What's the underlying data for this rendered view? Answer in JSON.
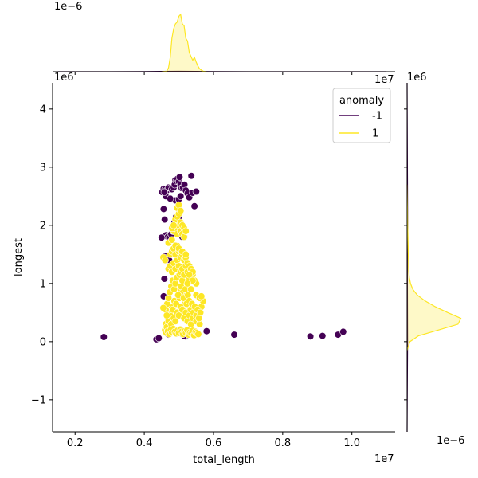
{
  "chart_data": {
    "type": "scatter",
    "title": "",
    "xlabel": "total_length",
    "ylabel": "longest",
    "x_offset_label": "1e7",
    "y_offset_label": "1e6",
    "xlim": [
      1350000,
      11250000
    ],
    "ylim": [
      -1550000,
      4450000
    ],
    "x_ticks": [
      2000000,
      4000000,
      6000000,
      8000000,
      10000000
    ],
    "x_tick_labels": [
      "0.2",
      "0.4",
      "0.6",
      "0.8",
      "1.0"
    ],
    "y_ticks": [
      -1000000,
      0,
      1000000,
      2000000,
      3000000,
      4000000
    ],
    "y_tick_labels": [
      "−1",
      "0",
      "1",
      "2",
      "3",
      "4"
    ],
    "grid": false,
    "legend": {
      "title": "anomaly",
      "placement": "upper-right",
      "entries": [
        {
          "label": "-1",
          "color": "#440154"
        },
        {
          "label": "1",
          "color": "#fde725"
        }
      ]
    },
    "series": [
      {
        "name": "-1",
        "color": "#440154",
        "x": [
          2830000,
          4350000,
          4420000,
          4520000,
          4560000,
          4600000,
          4650000,
          4700000,
          4750000,
          4800000,
          4850000,
          4880000,
          4900000,
          4930000,
          4960000,
          5000000,
          5020000,
          5050000,
          5080000,
          5120000,
          5160000,
          5200000,
          5250000,
          5300000,
          5360000,
          5450000,
          4560000,
          4590000,
          4630000,
          4680000,
          4720000,
          4780000,
          4830000,
          4870000,
          4920000,
          5000000,
          5060000,
          5100000,
          5160000,
          4600000,
          4650000,
          4720000,
          4580000,
          4560000,
          5450000,
          5300000,
          5250000,
          5200000,
          5150000,
          5100000,
          5800000,
          6600000,
          8800000,
          9150000,
          9600000,
          9750000,
          4500000,
          4620000,
          4580000,
          4900000,
          5000000,
          5400000,
          5500000,
          4700000,
          5050000,
          4750000
        ],
        "y": [
          80000,
          40000,
          60000,
          2570000,
          2630000,
          2620000,
          2600000,
          2650000,
          2640000,
          2620000,
          2650000,
          2700000,
          2780000,
          2760000,
          2800000,
          2750000,
          2830000,
          2700000,
          2640000,
          2650000,
          2700000,
          2600000,
          2550000,
          2480000,
          2850000,
          2330000,
          2280000,
          2100000,
          1830000,
          1800000,
          1780000,
          1850000,
          1900000,
          2050000,
          2150000,
          2120000,
          1900000,
          1800000,
          1800000,
          1470000,
          1440000,
          1400000,
          1080000,
          780000,
          130000,
          120000,
          130000,
          90000,
          100000,
          130000,
          180000,
          120000,
          90000,
          100000,
          120000,
          170000,
          1790000,
          2500000,
          2570000,
          2430000,
          2450000,
          2560000,
          2580000,
          120000,
          2500000,
          2460000
        ]
      },
      {
        "name": "1",
        "color": "#fde725",
        "x": [
          4600000,
          4620000,
          4650000,
          4680000,
          4700000,
          4720000,
          4750000,
          4780000,
          4800000,
          4820000,
          4850000,
          4870000,
          4900000,
          4920000,
          4950000,
          4970000,
          5000000,
          5020000,
          5050000,
          5070000,
          5100000,
          5120000,
          5150000,
          5170000,
          5200000,
          5220000,
          5250000,
          5270000,
          5300000,
          5320000,
          5350000,
          5380000,
          5400000,
          5450000,
          5500000,
          5550000,
          5600000,
          5650000,
          5700000,
          4620000,
          4660000,
          4700000,
          4740000,
          4780000,
          4820000,
          4860000,
          4900000,
          4940000,
          4980000,
          5020000,
          5060000,
          5100000,
          5140000,
          5180000,
          5220000,
          5260000,
          5300000,
          5340000,
          5380000,
          5420000,
          5460000,
          5500000,
          5540000,
          5580000,
          5620000,
          4640000,
          4680000,
          4720000,
          4760000,
          4800000,
          4840000,
          4880000,
          4920000,
          4960000,
          5000000,
          5040000,
          5080000,
          5120000,
          5160000,
          5200000,
          5240000,
          5280000,
          5320000,
          5360000,
          5400000,
          5440000,
          5480000,
          5520000,
          5560000,
          4700000,
          4750000,
          4800000,
          4850000,
          4900000,
          4950000,
          5000000,
          5050000,
          5100000,
          5150000,
          5200000,
          5250000,
          5300000,
          5350000,
          5400000,
          5450000,
          5500000,
          4750000,
          4800000,
          4850000,
          4900000,
          4950000,
          5000000,
          5050000,
          5100000,
          5150000,
          5200000,
          5250000,
          5300000,
          5350000,
          5400000,
          4550000,
          4600000,
          4700000,
          4800000,
          4900000,
          5000000,
          5100000,
          5200000,
          5300000,
          5400000,
          4850000,
          4900000,
          4950000,
          5000000,
          5050000,
          5100000,
          5150000,
          4900000,
          4950000,
          5000000,
          5050000,
          5100000,
          4800000,
          4850000,
          5150000,
          5200000,
          4950000,
          5000000,
          5050000,
          4550000,
          4650000,
          5250000,
          5350000,
          5500000,
          5600000,
          5650000
        ],
        "y": [
          200000,
          300000,
          250000,
          400000,
          350000,
          500000,
          450000,
          300000,
          600000,
          550000,
          400000,
          700000,
          350000,
          650000,
          500000,
          800000,
          450000,
          750000,
          600000,
          900000,
          550000,
          850000,
          400000,
          700000,
          500000,
          800000,
          350000,
          650000,
          450000,
          600000,
          300000,
          550000,
          400000,
          500000,
          350000,
          450000,
          300000,
          600000,
          700000,
          550000,
          650000,
          750000,
          850000,
          950000,
          1050000,
          900000,
          1000000,
          1100000,
          800000,
          1150000,
          950000,
          1050000,
          750000,
          900000,
          650000,
          800000,
          700000,
          550000,
          650000,
          500000,
          600000,
          450000,
          550000,
          400000,
          500000,
          150000,
          180000,
          130000,
          200000,
          160000,
          220000,
          170000,
          140000,
          190000,
          150000,
          210000,
          170000,
          130000,
          180000,
          150000,
          200000,
          120000,
          160000,
          140000,
          190000,
          110000,
          170000,
          150000,
          130000,
          1250000,
          1300000,
          1200000,
          1350000,
          1250000,
          1400000,
          1300000,
          1200000,
          1250000,
          1150000,
          1300000,
          1200000,
          1100000,
          1250000,
          1150000,
          1050000,
          1000000,
          1500000,
          1550000,
          1600000,
          1500000,
          1650000,
          1550000,
          1450000,
          1500000,
          1400000,
          1450000,
          1350000,
          1300000,
          1250000,
          1200000,
          1450000,
          1400000,
          1700000,
          1750000,
          1650000,
          1600000,
          1550000,
          1500000,
          1150000,
          1050000,
          1900000,
          1950000,
          1850000,
          2000000,
          1900000,
          1850000,
          1800000,
          2100000,
          2150000,
          2200000,
          2050000,
          2000000,
          1950000,
          2000000,
          1950000,
          1900000,
          2300000,
          2350000,
          2250000,
          580000,
          450000,
          1000000,
          900000,
          800000,
          750000,
          780000
        ]
      }
    ],
    "marginal_top": {
      "type": "density",
      "offset_label": "1e−6",
      "series": [
        {
          "name": "-1",
          "color": "#440154",
          "x": [
            1500000,
            3000000,
            4000000,
            4500000,
            5000000,
            5500000,
            6000000,
            7000000,
            9000000,
            11000000
          ],
          "density": [
            0.0,
            0.002,
            0.008,
            0.035,
            0.045,
            0.035,
            0.012,
            0.004,
            0.003,
            0.0
          ]
        },
        {
          "name": "1",
          "color": "#fde725",
          "x": [
            4500000,
            4650000,
            4700000,
            4750000,
            4800000,
            4850000,
            4900000,
            4950000,
            5000000,
            5050000,
            5100000,
            5150000,
            5200000,
            5250000,
            5300000,
            5350000,
            5400000,
            5450000,
            5500000,
            5550000,
            5600000,
            5700000,
            5800000
          ],
          "density": [
            0.0,
            0.05,
            0.4,
            1.5,
            3.5,
            4.5,
            5.0,
            5.2,
            5.8,
            6.0,
            5.0,
            4.8,
            3.5,
            3.2,
            2.0,
            1.6,
            1.2,
            1.5,
            1.0,
            0.6,
            0.3,
            0.05,
            0.0
          ]
        }
      ]
    },
    "marginal_right": {
      "type": "density",
      "offset_label": "1e−6",
      "series": [
        {
          "name": "-1",
          "color": "#440154",
          "y": [
            -1550000,
            -1000000,
            0,
            1000000,
            2000000,
            3000000,
            4450000
          ],
          "density": [
            0.0,
            0.003,
            0.008,
            0.005,
            0.01,
            0.005,
            0.0
          ]
        },
        {
          "name": "1",
          "color": "#fde725",
          "y": [
            -150000,
            0,
            100000,
            200000,
            300000,
            400000,
            500000,
            600000,
            700000,
            800000,
            900000,
            1000000,
            1100000,
            1200000,
            1400000,
            1600000,
            1800000,
            2000000,
            2300000,
            2700000
          ],
          "density": [
            0.0,
            0.05,
            0.2,
            0.55,
            0.9,
            0.95,
            0.72,
            0.5,
            0.32,
            0.18,
            0.1,
            0.06,
            0.04,
            0.03,
            0.025,
            0.02,
            0.015,
            0.01,
            0.005,
            0.0
          ]
        }
      ]
    }
  }
}
